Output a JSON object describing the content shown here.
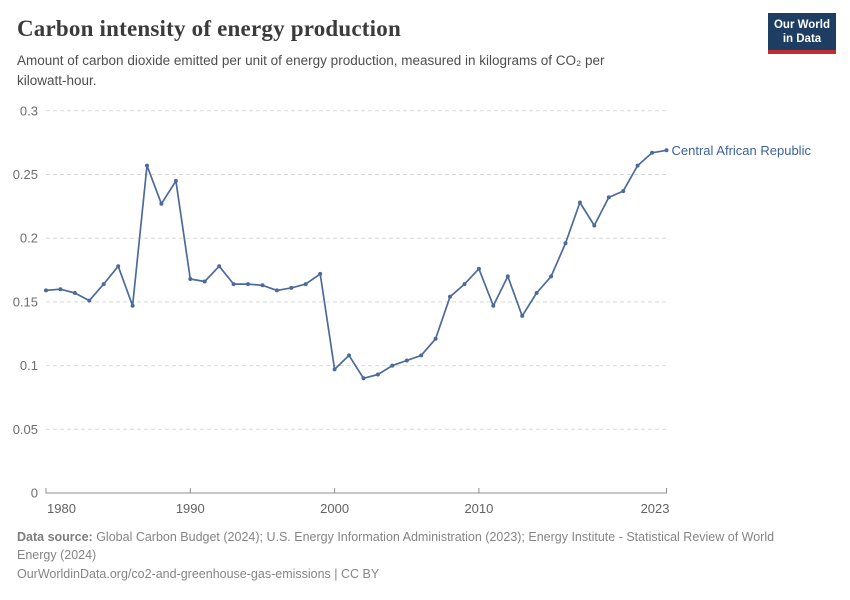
{
  "header": {
    "title": "Carbon intensity of energy production",
    "subtitle_lines": [
      "Amount of carbon dioxide emitted per unit of energy production, measured in kilograms of CO₂ per",
      "kilowatt-hour."
    ],
    "logo": {
      "line1": "Our World",
      "line2": "in Data"
    }
  },
  "chart_data": {
    "type": "line",
    "title": "Carbon intensity of energy production",
    "xlabel": "",
    "ylabel": "",
    "xlim": [
      1980,
      2023
    ],
    "ylim": [
      0,
      0.3
    ],
    "x_ticks": [
      1980,
      1990,
      2000,
      2010,
      2023
    ],
    "x_tick_labels": [
      "1980",
      "1990",
      "2000",
      "2010",
      "2023"
    ],
    "y_ticks": [
      0,
      0.05,
      0.1,
      0.15,
      0.2,
      0.25,
      0.3
    ],
    "y_tick_labels": [
      "0",
      "0.05",
      "0.1",
      "0.15",
      "0.2",
      "0.25",
      "0.3"
    ],
    "grid": "horizontal-dashed",
    "legend_position": "end-of-line-label",
    "series": [
      {
        "name": "Central African Republic",
        "color": "#4c6a9c",
        "years": [
          1980,
          1981,
          1982,
          1983,
          1984,
          1985,
          1986,
          1987,
          1988,
          1989,
          1990,
          1991,
          1992,
          1993,
          1994,
          1995,
          1996,
          1997,
          1998,
          1999,
          2000,
          2001,
          2002,
          2003,
          2004,
          2005,
          2006,
          2007,
          2008,
          2009,
          2010,
          2011,
          2012,
          2013,
          2014,
          2015,
          2016,
          2017,
          2018,
          2019,
          2020,
          2021,
          2022,
          2023
        ],
        "values": [
          0.159,
          0.16,
          0.157,
          0.151,
          0.164,
          0.178,
          0.147,
          0.257,
          0.227,
          0.245,
          0.168,
          0.166,
          0.178,
          0.164,
          0.164,
          0.163,
          0.159,
          0.161,
          0.164,
          0.172,
          0.097,
          0.108,
          0.09,
          0.093,
          0.1,
          0.104,
          0.108,
          0.121,
          0.154,
          0.164,
          0.176,
          0.147,
          0.17,
          0.139,
          0.157,
          0.17,
          0.196,
          0.228,
          0.21,
          0.232,
          0.237,
          0.257,
          0.267,
          0.269
        ]
      }
    ]
  },
  "footer": {
    "source_bold": "Data source:",
    "source_line1_rest": " Global Carbon Budget (2024); U.S. Energy Information Administration (2023); Energy Institute - Statistical Review of World",
    "source_line2": "Energy (2024)",
    "license": "OurWorldinData.org/co2-and-greenhouse-gas-emissions | CC BY"
  },
  "colors": {
    "line": "#4c6a9c",
    "series_label": "#3d6399",
    "grid": "#d9d9d9",
    "axis": "#8f8f8f",
    "tick_text": "#6e6e6e",
    "logo_bg": "#1d3d63",
    "logo_stripe": "#bf2c31"
  }
}
